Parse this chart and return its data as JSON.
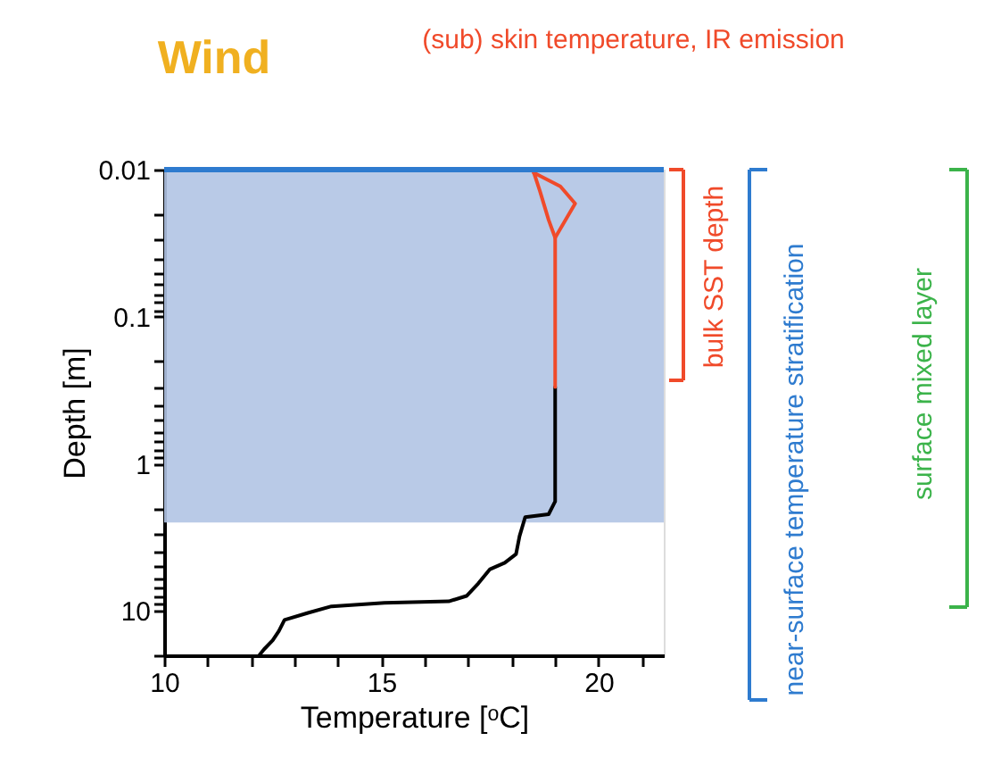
{
  "chart_data": {
    "type": "line",
    "xlabel": "Temperature [ᵒC]",
    "ylabel": "Depth [m]",
    "log": "y",
    "grid": false,
    "legend": false,
    "marker": "none",
    "line_style": "solid",
    "xlim": [
      10,
      21.5
    ],
    "xticks": [
      10,
      {
        "value": 11,
        "label": null
      },
      {
        "value": 12,
        "label": null
      },
      {
        "value": 13,
        "label": null
      },
      {
        "value": 14,
        "label": null
      },
      15,
      {
        "value": 16,
        "label": null
      },
      {
        "value": 17,
        "label": null
      },
      {
        "value": 18,
        "label": null
      },
      {
        "value": 19,
        "label": null
      },
      20,
      {
        "value": 21,
        "label": null
      }
    ],
    "ylim": [
      20,
      0.01
    ],
    "yticks": [
      0.01,
      {
        "value": 0.02,
        "label": null
      },
      {
        "value": 0.03,
        "label": null
      },
      {
        "value": 0.04,
        "label": null
      },
      {
        "value": 0.05,
        "label": null
      },
      {
        "value": 0.06,
        "label": null
      },
      {
        "value": 0.07,
        "label": null
      },
      {
        "value": 0.08,
        "label": null
      },
      {
        "value": 0.09,
        "label": null
      },
      0.1,
      {
        "value": 0.2,
        "label": null
      },
      {
        "value": 0.3,
        "label": null
      },
      {
        "value": 0.4,
        "label": null
      },
      {
        "value": 0.5,
        "label": null
      },
      {
        "value": 0.6,
        "label": null
      },
      {
        "value": 0.7,
        "label": null
      },
      {
        "value": 0.8,
        "label": null
      },
      {
        "value": 0.9,
        "label": null
      },
      1,
      {
        "value": 2,
        "label": null
      },
      {
        "value": 3,
        "label": null
      },
      {
        "value": 4,
        "label": null
      },
      {
        "value": 5,
        "label": null
      },
      {
        "value": 6,
        "label": null
      },
      {
        "value": 7,
        "label": null
      },
      {
        "value": 8,
        "label": null
      },
      {
        "value": 9,
        "label": null
      },
      10,
      {
        "value": 20,
        "label": null
      }
    ],
    "series": [
      {
        "color": "#000000",
        "x": [
          19.0,
          19.0,
          18.85,
          18.31,
          18.18,
          18.1,
          17.84,
          17.5,
          17.23,
          16.96,
          16.55,
          15.07,
          13.85,
          13.31,
          12.77,
          12.64,
          12.5,
          12.3,
          12.2
        ],
        "values": [
          0.3,
          1.8,
          2.2,
          2.3,
          3.1,
          4.1,
          4.7,
          5.2,
          6.5,
          7.9,
          8.6,
          8.8,
          9.3,
          10.3,
          11.5,
          13.7,
          15.8,
          18.2,
          19.8
        ]
      },
      {
        "color": "#f04a2a",
        "x": [
          19.0,
          19.0,
          19.46,
          19.12,
          18.51
        ],
        "values": [
          0.3,
          0.029,
          0.017,
          0.013,
          0.0105
        ]
      },
      {
        "color": "#f04a2a",
        "x": [
          19.0,
          18.85,
          18.65,
          18.51
        ],
        "values": [
          0.029,
          0.022,
          0.014,
          0.0105
        ]
      }
    ],
    "bands": [
      {
        "axis": "y",
        "from": 0.01,
        "to": 2.5,
        "color": "#b1c4e4"
      }
    ],
    "ref_lines": [
      {
        "axis": "y",
        "value": 0.01,
        "color": "#2e7bcf",
        "line_style": "solid"
      }
    ],
    "annotations": [
      "Wind",
      "(sub) skin temperature, IR emission",
      "bulk  SST depth",
      "near-surface temperature stratification",
      "surface mixed layer"
    ]
  }
}
